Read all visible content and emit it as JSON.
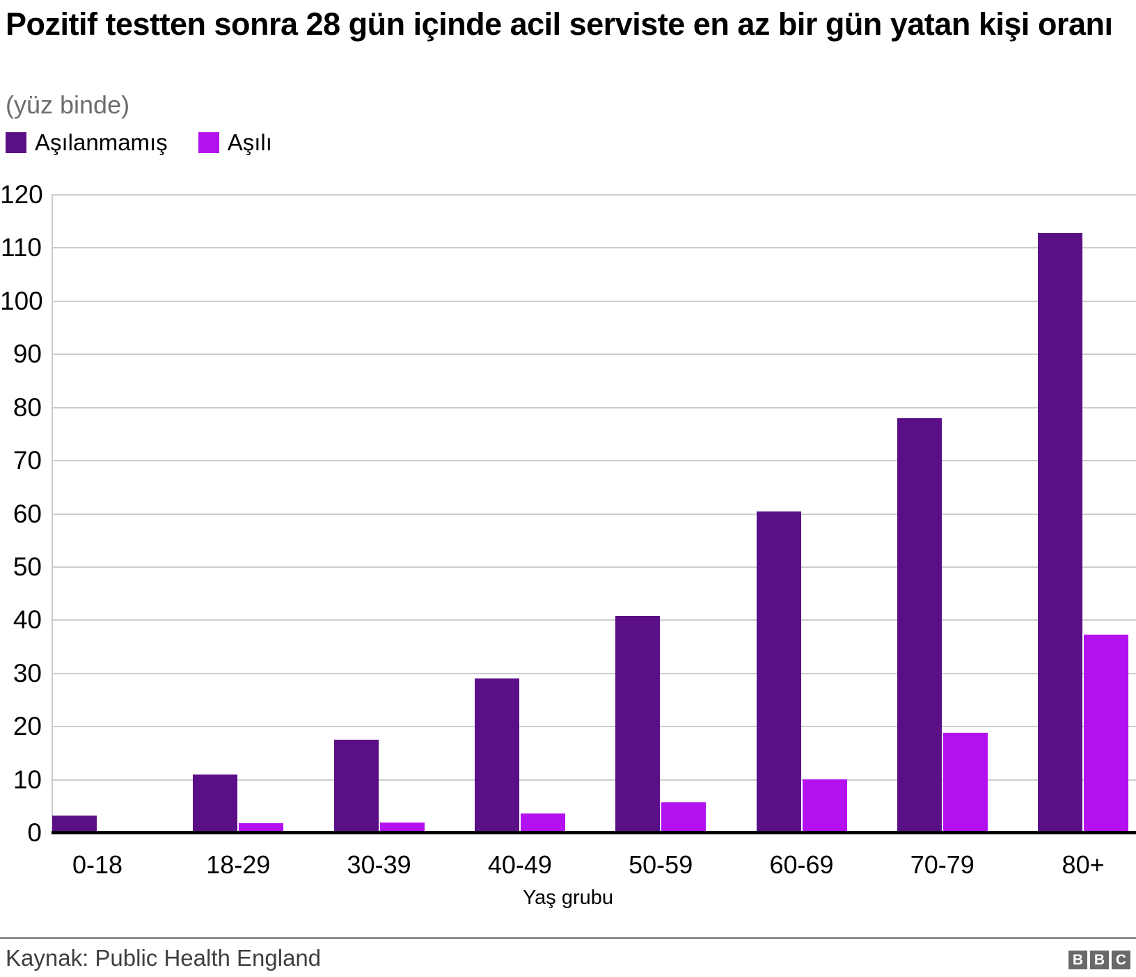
{
  "header": {
    "title": "Pozitif testten sonra 28 gün içinde acil serviste en az bir gün yatan kişi oranı",
    "subtitle": "(yüz binde)"
  },
  "legend": [
    {
      "label": "Aşılanmamış",
      "color": "#5b0f87"
    },
    {
      "label": "Aşılı",
      "color": "#b411f0"
    }
  ],
  "chart_data": {
    "type": "bar",
    "categories": [
      "0-18",
      "18-29",
      "30-39",
      "40-49",
      "50-59",
      "60-69",
      "70-79",
      "80+"
    ],
    "series": [
      {
        "name": "Aşılanmamış",
        "color": "#5b0f87",
        "values": [
          3.3,
          11,
          17.5,
          29,
          40.8,
          60.4,
          78,
          112.8
        ]
      },
      {
        "name": "Aşılı",
        "color": "#b411f0",
        "values": [
          0,
          1.8,
          2,
          3.6,
          5.7,
          10.1,
          18.8,
          37.3
        ]
      }
    ],
    "title": "Pozitif testten sonra 28 gün içinde acil serviste en az bir gün yatan kişi oranı",
    "xlabel": "Yaş grubu",
    "ylabel": "",
    "ylim": [
      0,
      120
    ],
    "yticks": [
      0,
      10,
      20,
      30,
      40,
      50,
      60,
      70,
      80,
      90,
      100,
      110,
      120
    ],
    "grid": true,
    "legend_position": "top-left"
  },
  "footer": {
    "source": "Kaynak: Public Health England",
    "logo_blocks": [
      "B",
      "B",
      "C"
    ]
  }
}
